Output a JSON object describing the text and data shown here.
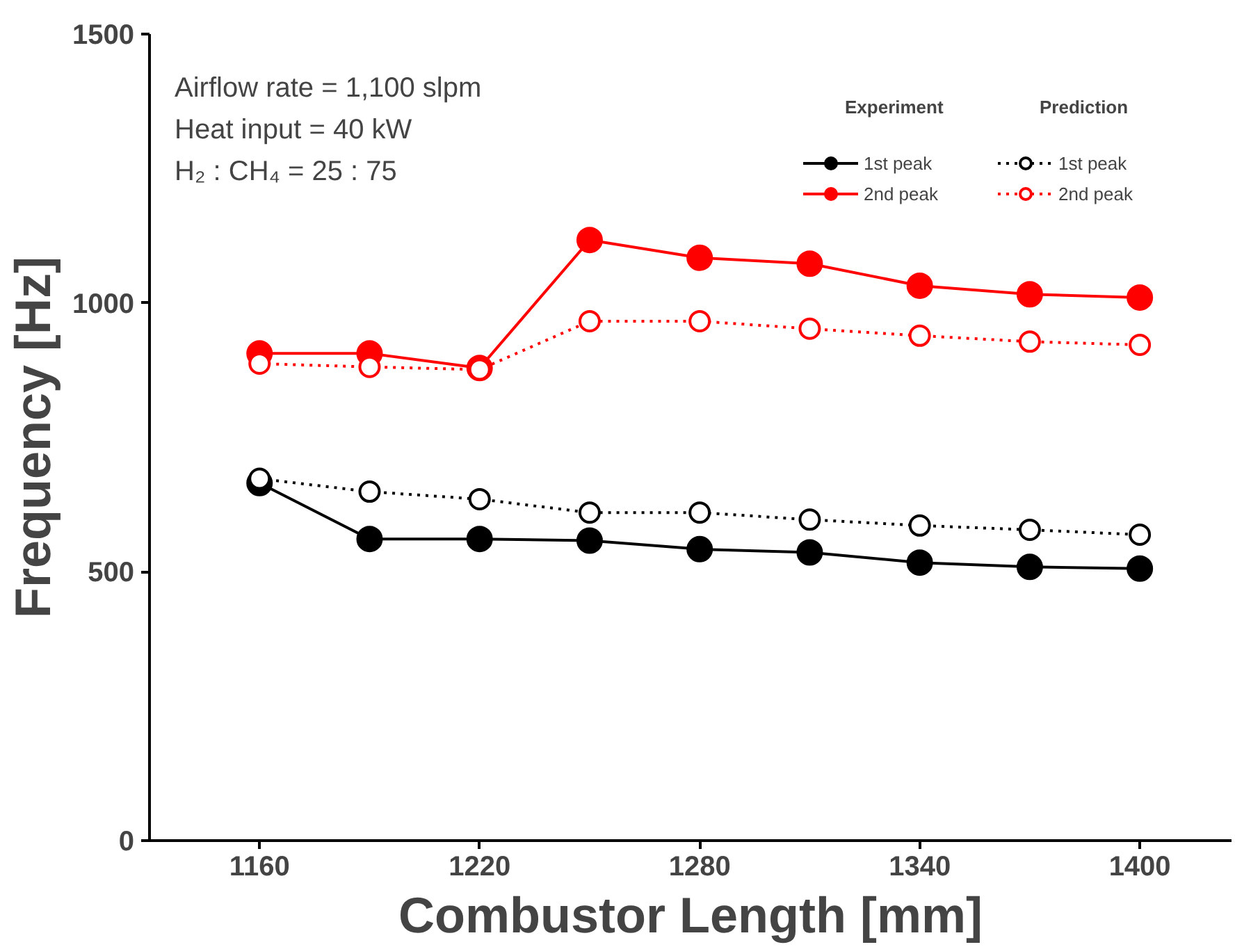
{
  "chart_data": {
    "type": "line",
    "xlabel": "Combustor Length [mm]",
    "ylabel": "Frequency [Hz]",
    "x": [
      1160,
      1190,
      1220,
      1250,
      1280,
      1310,
      1340,
      1370,
      1400
    ],
    "series": [
      {
        "name": "1st peak",
        "color": "#000000",
        "line_style": "solid",
        "values": [
          665,
          561,
          561,
          558,
          542,
          536,
          517,
          509,
          506
        ]
      },
      {
        "name": "2nd peak",
        "color": "#ff0000",
        "line_style": "solid",
        "values": [
          906,
          906,
          879,
          1117,
          1084,
          1073,
          1032,
          1016,
          1010
        ]
      },
      {
        "name": "1st peak",
        "color": "#000000",
        "line_style": "dotted",
        "values": [
          673,
          649,
          635,
          610,
          610,
          597,
          586,
          578,
          569
        ]
      },
      {
        "name": "2nd peak",
        "color": "#ff0000",
        "line_style": "dotted",
        "values": [
          887,
          881,
          876,
          966,
          966,
          952,
          939,
          928,
          922
        ]
      }
    ],
    "annotations": [
      "Airflow rate = 1,100 slpm",
      "Heat input = 40 kW",
      "H₂ : CH₄ = 25 : 75",
      "Experiment",
      "Prediction"
    ],
    "xlim": [
      1130,
      1425
    ],
    "ylim": [
      0,
      1500
    ],
    "xticks": [
      1160,
      1220,
      1280,
      1340,
      1400
    ],
    "yticks": [
      0,
      500,
      1000,
      1500
    ],
    "grid": false,
    "legend": "top right",
    "marker": "circle"
  }
}
